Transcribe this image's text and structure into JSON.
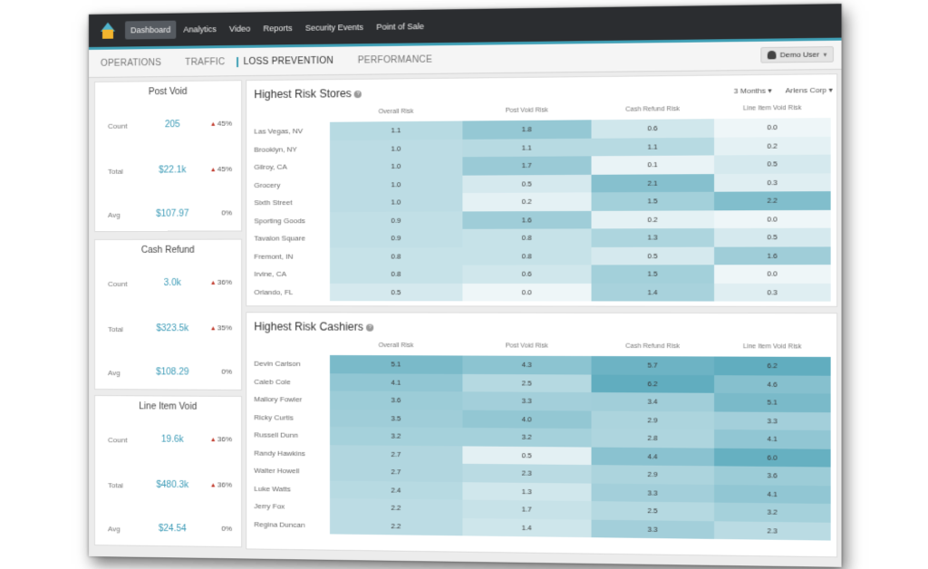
{
  "nav": {
    "items": [
      "Dashboard",
      "Analytics",
      "Video",
      "Reports",
      "Security Events",
      "Point of Sale"
    ],
    "active_index": 0,
    "user_label": "Demo User"
  },
  "subnav": {
    "tabs": [
      "OPERATIONS",
      "TRAFFIC",
      "LOSS PREVENTION",
      "PERFORMANCE"
    ],
    "active_index": 2
  },
  "filters": {
    "period": "3 Months",
    "company": "Arlens Corp"
  },
  "kpis": [
    {
      "title": "Post Void",
      "rows": [
        {
          "label": "Count",
          "value": "205",
          "change": "45%",
          "direction": "up"
        },
        {
          "label": "Total",
          "value": "$22.1k",
          "change": "45%",
          "direction": "up"
        },
        {
          "label": "Avg",
          "value": "$107.97",
          "change": "0%",
          "direction": "none"
        }
      ]
    },
    {
      "title": "Cash Refund",
      "rows": [
        {
          "label": "Count",
          "value": "3.0k",
          "change": "36%",
          "direction": "up"
        },
        {
          "label": "Total",
          "value": "$323.5k",
          "change": "35%",
          "direction": "up"
        },
        {
          "label": "Avg",
          "value": "$108.29",
          "change": "0%",
          "direction": "none"
        }
      ]
    },
    {
      "title": "Line Item Void",
      "rows": [
        {
          "label": "Count",
          "value": "19.6k",
          "change": "36%",
          "direction": "up"
        },
        {
          "label": "Total",
          "value": "$480.3k",
          "change": "36%",
          "direction": "up"
        },
        {
          "label": "Avg",
          "value": "$24.54",
          "change": "0%",
          "direction": "none"
        }
      ]
    }
  ],
  "stores": {
    "title": "Highest Risk Stores",
    "columns": [
      "Overall Risk",
      "Post Void Risk",
      "Cash Refund Risk",
      "Line Item Void Risk"
    ],
    "rows": [
      {
        "name": "Las Vegas, NV",
        "values": [
          "1.1",
          "1.8",
          "0.6",
          "0.0"
        ]
      },
      {
        "name": "Brooklyn, NY",
        "values": [
          "1.0",
          "1.1",
          "1.1",
          "0.2"
        ]
      },
      {
        "name": "Gilroy, CA",
        "values": [
          "1.0",
          "1.7",
          "0.1",
          "0.5"
        ]
      },
      {
        "name": "Grocery",
        "values": [
          "1.0",
          "0.5",
          "2.1",
          "0.3"
        ]
      },
      {
        "name": "Sixth Street",
        "values": [
          "1.0",
          "0.2",
          "1.5",
          "2.2"
        ]
      },
      {
        "name": "Sporting Goods",
        "values": [
          "0.9",
          "1.6",
          "0.2",
          "0.0"
        ]
      },
      {
        "name": "Tavalon Square",
        "values": [
          "0.9",
          "0.8",
          "1.3",
          "0.5"
        ]
      },
      {
        "name": "Fremont, IN",
        "values": [
          "0.8",
          "0.8",
          "0.5",
          "1.6"
        ]
      },
      {
        "name": "Irvine, CA",
        "values": [
          "0.8",
          "0.6",
          "1.5",
          "0.0"
        ]
      },
      {
        "name": "Orlando, FL",
        "values": [
          "0.5",
          "0.0",
          "1.4",
          "0.3"
        ]
      }
    ]
  },
  "cashiers": {
    "title": "Highest Risk Cashiers",
    "columns": [
      "Overall Risk",
      "Post Void Risk",
      "Cash Refund Risk",
      "Line Item Void Risk"
    ],
    "rows": [
      {
        "name": "Devin Carlson",
        "values": [
          "5.1",
          "4.3",
          "5.7",
          "6.2"
        ]
      },
      {
        "name": "Caleb Cole",
        "values": [
          "4.1",
          "2.5",
          "6.2",
          "4.6"
        ]
      },
      {
        "name": "Mallory Fowler",
        "values": [
          "3.6",
          "3.3",
          "3.4",
          "5.1"
        ]
      },
      {
        "name": "Ricky Curtis",
        "values": [
          "3.5",
          "4.0",
          "2.9",
          "3.3"
        ]
      },
      {
        "name": "Russell Dunn",
        "values": [
          "3.2",
          "3.2",
          "2.8",
          "4.1"
        ]
      },
      {
        "name": "Randy Hawkins",
        "values": [
          "2.7",
          "0.5",
          "4.4",
          "6.0"
        ]
      },
      {
        "name": "Walter Howell",
        "values": [
          "2.7",
          "2.3",
          "2.9",
          "3.6"
        ]
      },
      {
        "name": "Luke Watts",
        "values": [
          "2.4",
          "1.3",
          "3.3",
          "4.1"
        ]
      },
      {
        "name": "Jerry Fox",
        "values": [
          "2.2",
          "1.7",
          "2.5",
          "3.2"
        ]
      },
      {
        "name": "Regina Duncan",
        "values": [
          "2.2",
          "1.4",
          "3.3",
          "2.3"
        ]
      }
    ]
  },
  "colors": {
    "accent": "#3f9fb5",
    "heat_low": "#eef6f8",
    "heat_high": "#4fa4b8",
    "negative": "#c0392b"
  }
}
